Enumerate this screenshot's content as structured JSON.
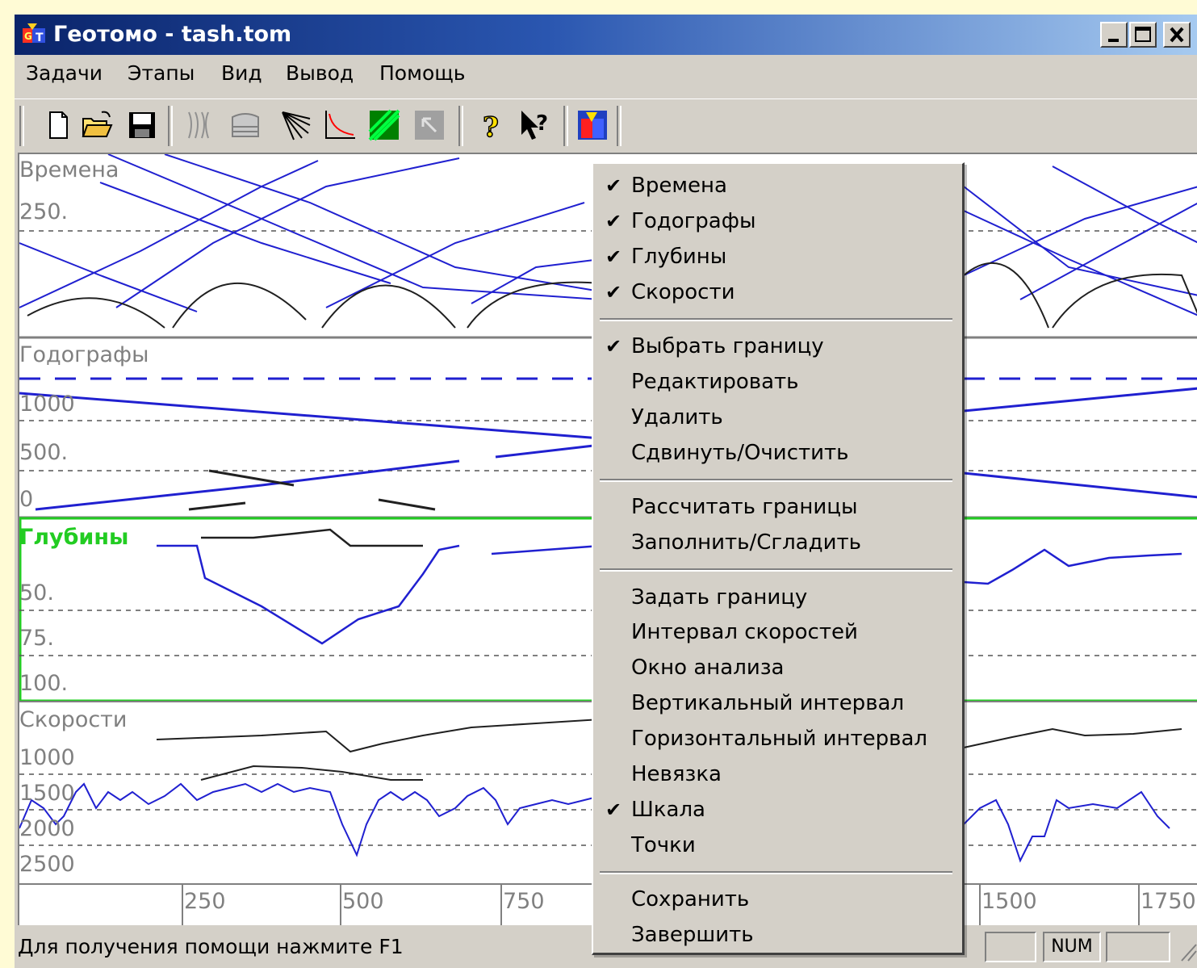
{
  "window": {
    "title": "Геотомо - tash.tom"
  },
  "menubar": [
    "Задачи",
    "Этапы",
    "Вид",
    "Вывод",
    "Помощь"
  ],
  "toolbar": {
    "buttons": [
      "new-document",
      "open-folder",
      "save-disk",
      "rays",
      "model",
      "fan",
      "traveltime-curve",
      "tomography",
      "export",
      "help",
      "context-help",
      "about"
    ]
  },
  "panels": {
    "times": {
      "title": "Времена",
      "ticks": [
        "250."
      ]
    },
    "traveltimes": {
      "title": "Годографы",
      "ticks": [
        "1000",
        "500.",
        "0"
      ]
    },
    "depths": {
      "title": "Глубины",
      "title_color": "#22cc22",
      "ticks": [
        "50.",
        "75.",
        "100."
      ]
    },
    "velocities": {
      "title": "Скорости",
      "ticks": [
        "1000",
        "1500",
        "2000",
        "2500"
      ]
    }
  },
  "x_axis": {
    "ticks": [
      "250",
      "500",
      "750",
      "1500",
      "1750"
    ]
  },
  "context_menu": {
    "groups": [
      [
        {
          "label": "Времена",
          "checked": true
        },
        {
          "label": "Годографы",
          "checked": true
        },
        {
          "label": "Глубины",
          "checked": true
        },
        {
          "label": "Скорости",
          "checked": true
        }
      ],
      [
        {
          "label": "Выбрать границу",
          "checked": true
        },
        {
          "label": "Редактировать",
          "checked": false
        },
        {
          "label": "Удалить",
          "checked": false
        },
        {
          "label": "Сдвинуть/Очистить",
          "checked": false
        }
      ],
      [
        {
          "label": "Рассчитать границы",
          "checked": false
        },
        {
          "label": "Заполнить/Сгладить",
          "checked": false
        }
      ],
      [
        {
          "label": "Задать границу",
          "checked": false
        },
        {
          "label": "Интервал скоростей",
          "checked": false
        },
        {
          "label": "Окно анализа",
          "checked": false
        },
        {
          "label": "Вертикальный интервал",
          "checked": false
        },
        {
          "label": "Горизонтальный интервал",
          "checked": false
        },
        {
          "label": "Невязка",
          "checked": false
        },
        {
          "label": "Шкала",
          "checked": true
        },
        {
          "label": "Точки",
          "checked": false
        }
      ],
      [
        {
          "label": "Сохранить",
          "checked": false
        },
        {
          "label": "Завершить",
          "checked": false
        }
      ]
    ]
  },
  "statusbar": {
    "text": "Для получения помощи нажмите F1",
    "num": "NUM"
  }
}
